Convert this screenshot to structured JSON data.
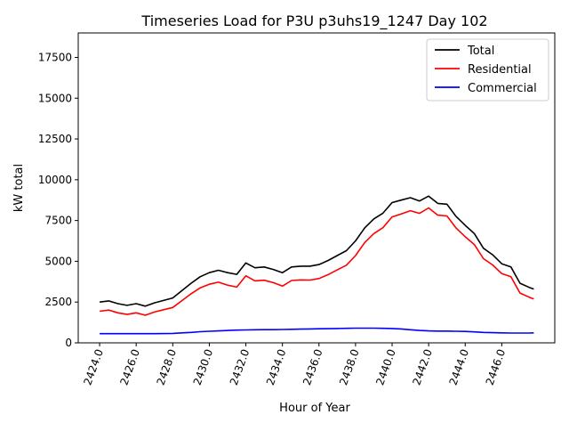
{
  "chart_data": {
    "type": "line",
    "title": "Timeseries Load for P3U p3uhs19_1247  Day 102",
    "xlabel": "Hour of Year",
    "ylabel": "kW total",
    "xlim": [
      2422.83,
      2448.9
    ],
    "ylim": [
      0,
      19000
    ],
    "xticks": [
      2424,
      2426,
      2428,
      2430,
      2432,
      2434,
      2436,
      2438,
      2440,
      2442,
      2444,
      2446
    ],
    "xtick_labels": [
      "2424.0",
      "2426.0",
      "2428.0",
      "2430.0",
      "2432.0",
      "2434.0",
      "2436.0",
      "2438.0",
      "2440.0",
      "2442.0",
      "2444.0",
      "2446.0"
    ],
    "yticks": [
      0,
      2500,
      5000,
      7500,
      10000,
      12500,
      15000,
      17500
    ],
    "ytick_labels": [
      "0",
      "2500",
      "5000",
      "7500",
      "10000",
      "12500",
      "15000",
      "17500"
    ],
    "grid": false,
    "legend_placement": "top-right",
    "x": [
      2424,
      2424.5,
      2425,
      2425.5,
      2426,
      2426.5,
      2427,
      2427.5,
      2428,
      2428.5,
      2429,
      2429.5,
      2430,
      2430.5,
      2431,
      2431.5,
      2432,
      2432.5,
      2433,
      2433.5,
      2434,
      2434.5,
      2435,
      2435.5,
      2436,
      2436.5,
      2437,
      2437.5,
      2438,
      2438.5,
      2439,
      2439.5,
      2440,
      2440.5,
      2441,
      2441.5,
      2442,
      2442.5,
      2443,
      2443.5,
      2444,
      2444.5,
      2445,
      2445.5,
      2446,
      2446.5,
      2447,
      2447.5,
      2447.75
    ],
    "series": [
      {
        "name": "Total",
        "color": "#000000",
        "values": [
          2500,
          2570,
          2400,
          2300,
          2400,
          2250,
          2450,
          2600,
          2750,
          3200,
          3650,
          4050,
          4300,
          4450,
          4300,
          4200,
          4900,
          4600,
          4650,
          4500,
          4300,
          4650,
          4700,
          4700,
          4800,
          5050,
          5350,
          5650,
          6250,
          7050,
          7600,
          7950,
          8600,
          8750,
          8900,
          8700,
          9000,
          8550,
          8500,
          7750,
          7200,
          6700,
          5800,
          5400,
          4850,
          4650,
          3650,
          3400,
          3300
        ]
      },
      {
        "name": "Residential",
        "color": "#ff0000",
        "values": [
          1940,
          2010,
          1840,
          1740,
          1840,
          1690,
          1890,
          2030,
          2170,
          2590,
          3010,
          3370,
          3590,
          3720,
          3540,
          3420,
          4110,
          3800,
          3840,
          3690,
          3480,
          3820,
          3860,
          3850,
          3940,
          4180,
          4470,
          4760,
          5350,
          6150,
          6700,
          7060,
          7720,
          7900,
          8100,
          7940,
          8270,
          7830,
          7780,
          7040,
          6500,
          6030,
          5160,
          4780,
          4240,
          4050,
          3050,
          2800,
          2690
        ]
      },
      {
        "name": "Commercial",
        "color": "#0000ff",
        "values": [
          560,
          560,
          560,
          560,
          560,
          560,
          560,
          570,
          580,
          610,
          640,
          680,
          710,
          730,
          760,
          780,
          790,
          800,
          810,
          810,
          820,
          830,
          840,
          850,
          860,
          870,
          880,
          890,
          900,
          900,
          900,
          890,
          880,
          850,
          800,
          760,
          730,
          720,
          720,
          710,
          700,
          670,
          640,
          620,
          610,
          600,
          600,
          600,
          610
        ]
      }
    ]
  }
}
